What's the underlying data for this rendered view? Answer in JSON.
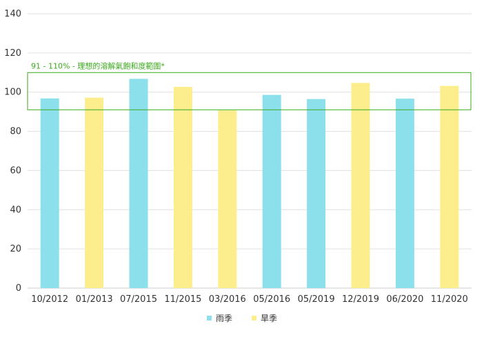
{
  "chart_data": {
    "type": "bar",
    "categories": [
      "10/2012",
      "01/2013",
      "07/2015",
      "11/2015",
      "03/2016",
      "05/2016",
      "05/2019",
      "12/2019",
      "06/2020",
      "11/2020"
    ],
    "values": [
      96.8,
      97.2,
      106.8,
      102.7,
      90.7,
      98.6,
      96.5,
      104.7,
      96.7,
      103.2
    ],
    "season": [
      "rain",
      "dry",
      "rain",
      "dry",
      "dry",
      "rain",
      "rain",
      "dry",
      "rain",
      "dry"
    ],
    "series": [
      {
        "name": "雨季",
        "key": "rain",
        "color": "#8be0ec"
      },
      {
        "name": "旱季",
        "key": "dry",
        "color": "#fcee8c"
      }
    ],
    "ylim": [
      0,
      140
    ],
    "yticks": [
      0,
      20,
      40,
      60,
      80,
      100,
      120,
      140
    ],
    "band": {
      "from": 91,
      "to": 110,
      "label": "91 - 110% - 理想的溶解氣飽和度範圍*",
      "color": "#3aaa1c"
    },
    "grid": true,
    "legend_position": "bottom-center"
  }
}
